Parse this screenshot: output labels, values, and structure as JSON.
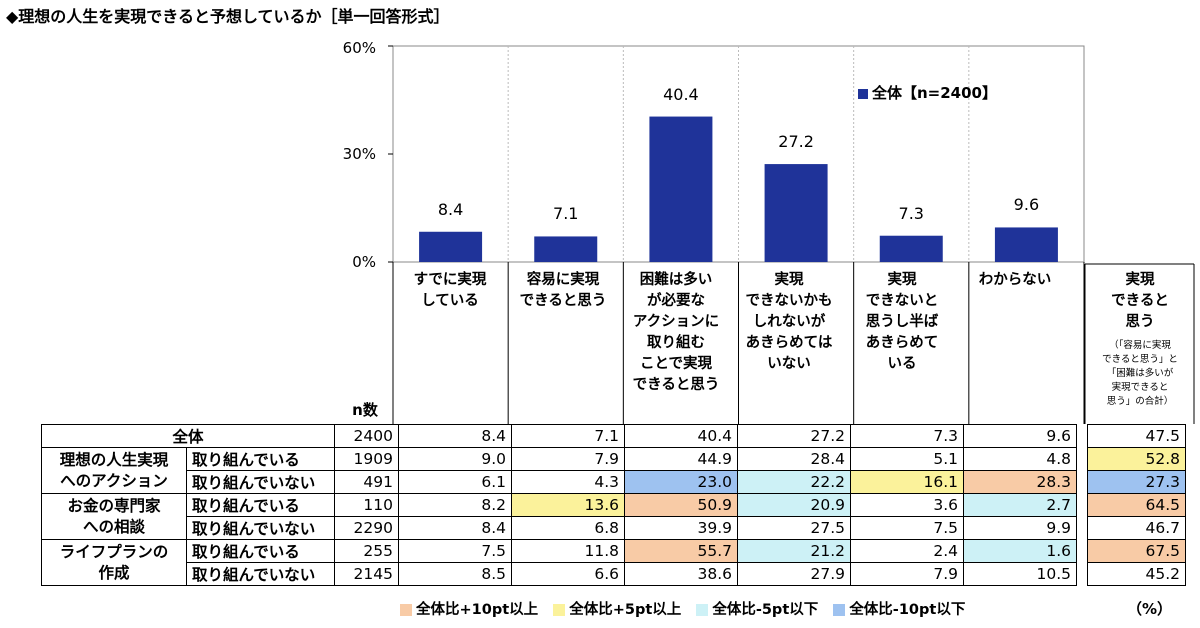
{
  "title": "◆理想の人生を実現できると予想しているか［単一回答形式］",
  "colors": {
    "bar": "#1f3399",
    "orange": "#f8cba6",
    "yellow": "#fbf29b",
    "cyan": "#cdf1f6",
    "blue": "#9ec2f0"
  },
  "chart_data": {
    "type": "bar",
    "categories": [
      "すでに実現している",
      "容易に実現できると思う",
      "困難は多いが必要なアクションに取り組むことで実現できると思う",
      "実現できないかもしれないがあきらめてはいない",
      "実現できないと思うし半ばあきらめている",
      "わからない"
    ],
    "series": [
      {
        "name": "全体【n=2400】",
        "values": [
          8.4,
          7.1,
          40.4,
          27.2,
          7.3,
          9.6
        ]
      }
    ],
    "ylim": [
      0,
      60
    ],
    "yticks": [
      "0%",
      "30%",
      "60%"
    ],
    "ytick_values": [
      0,
      30,
      60
    ],
    "grid": "vertical separators",
    "legend_position": "top-right"
  },
  "legend_label": "全体【n=2400】",
  "header": {
    "categories": [
      "すでに実現\nしている",
      "容易に実現\nできると思う",
      "困難は多い\nが必要な\nアクションに\n取り組む\nことで実現\nできると思う",
      "実現\nできないかも\nしれないが\nあきらめては\nいない",
      "実現\nできないと\n思うし半ば\nあきらめて\nいる",
      "わからない"
    ],
    "summary_title": "実現\nできると\n思う",
    "summary_note": "（「容易に実現\nできると思う」と\n「困難は多いが\n実現できると\n思う」の合計）",
    "n_label": "n数"
  },
  "table": {
    "total": {
      "label": "全体",
      "n": "2400",
      "values": [
        "8.4",
        "7.1",
        "40.4",
        "27.2",
        "7.3",
        "9.6"
      ],
      "sum": "47.5"
    },
    "groups": [
      {
        "label": "理想の人生実現\nへのアクション",
        "rows": [
          {
            "label": "取り組んでいる",
            "n": "1909",
            "values": [
              "9.0",
              "7.9",
              "44.9",
              "28.4",
              "5.1",
              "4.8"
            ],
            "sum": "52.8"
          },
          {
            "label": "取り組んでいない",
            "n": "491",
            "values": [
              "6.1",
              "4.3",
              "23.0",
              "22.2",
              "16.1",
              "28.3"
            ],
            "sum": "27.3"
          }
        ]
      },
      {
        "label": "お金の専門家\nへの相談",
        "rows": [
          {
            "label": "取り組んでいる",
            "n": "110",
            "values": [
              "8.2",
              "13.6",
              "50.9",
              "20.9",
              "3.6",
              "2.7"
            ],
            "sum": "64.5"
          },
          {
            "label": "取り組んでいない",
            "n": "2290",
            "values": [
              "8.4",
              "6.8",
              "39.9",
              "27.5",
              "7.5",
              "9.9"
            ],
            "sum": "46.7"
          }
        ]
      },
      {
        "label": "ライフプランの\n作成",
        "rows": [
          {
            "label": "取り組んでいる",
            "n": "255",
            "values": [
              "7.5",
              "11.8",
              "55.7",
              "21.2",
              "2.4",
              "1.6"
            ],
            "sum": "67.5"
          },
          {
            "label": "取り組んでいない",
            "n": "2145",
            "values": [
              "8.5",
              "6.6",
              "38.6",
              "27.9",
              "7.9",
              "10.5"
            ],
            "sum": "45.2"
          }
        ]
      }
    ]
  },
  "legend": {
    "items": [
      {
        "label": "全体比+10pt以上",
        "color": "#f8cba6"
      },
      {
        "label": "全体比+5pt以上",
        "color": "#fbf29b"
      },
      {
        "label": "全体比-5pt以下",
        "color": "#cdf1f6"
      },
      {
        "label": "全体比-10pt以下",
        "color": "#9ec2f0"
      }
    ],
    "unit": "（%）"
  }
}
